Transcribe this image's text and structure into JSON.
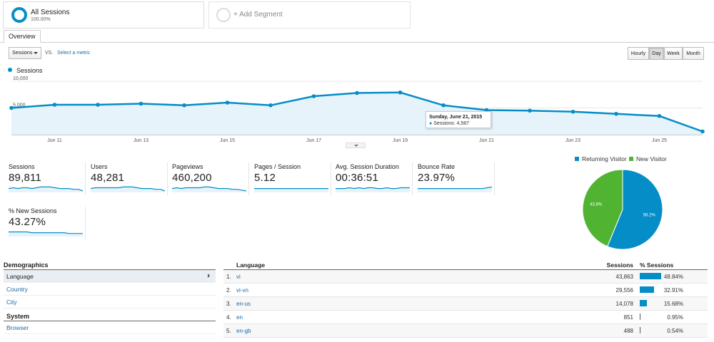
{
  "segments": [
    {
      "title": "All Sessions",
      "subtitle": "100.00%"
    },
    {
      "title": "+ Add Segment"
    }
  ],
  "tabs": [
    "Overview"
  ],
  "controls": {
    "metric": "Sessions",
    "vs": "VS.",
    "select_metric": "Select a metric",
    "granularity": [
      "Hourly",
      "Day",
      "Week",
      "Month"
    ],
    "active_granularity": "Day"
  },
  "chart_data": {
    "type": "area",
    "series": [
      {
        "name": "Sessions",
        "values": [
          5000,
          5600,
          5600,
          5800,
          5500,
          6000,
          5500,
          7200,
          7800,
          7900,
          5500,
          4600,
          4500,
          4300,
          3900,
          3500,
          600
        ]
      }
    ],
    "x_ticks": [
      "Jun 11",
      "Jun 13",
      "Jun 15",
      "Jun 17",
      "Jun 19",
      "Jun 21",
      "Jun 23",
      "Jun 25"
    ],
    "y_ticks": [
      "10,000",
      "5,000"
    ],
    "ylim": [
      0,
      10000
    ],
    "color": "#058dc7"
  },
  "tooltip": {
    "date": "Sunday, June 21, 2015",
    "text": "Sessions: 4,587"
  },
  "scorecards": [
    {
      "label": "Sessions",
      "value": "89,811",
      "spark": [
        6,
        5,
        6,
        5,
        5,
        6,
        5,
        4,
        4,
        4,
        5,
        6,
        6,
        6,
        7,
        7,
        9
      ]
    },
    {
      "label": "Users",
      "value": "48,281",
      "spark": [
        6,
        5,
        5,
        5,
        5,
        5,
        5,
        4,
        4,
        4,
        5,
        6,
        6,
        6,
        7,
        7,
        9
      ]
    },
    {
      "label": "Pageviews",
      "value": "460,200",
      "spark": [
        6,
        5,
        6,
        5,
        5,
        5,
        5,
        4,
        4,
        5,
        6,
        6,
        6,
        7,
        7,
        8,
        9
      ]
    },
    {
      "label": "Pages / Session",
      "value": "5.12",
      "spark": [
        6,
        6,
        6,
        6,
        6,
        6,
        6,
        6,
        6,
        6,
        6,
        6,
        6,
        6,
        6,
        6,
        6
      ]
    },
    {
      "label": "Avg. Session Duration",
      "value": "00:36:51",
      "spark": [
        6,
        6,
        6,
        5,
        6,
        5,
        6,
        5,
        5,
        6,
        6,
        5,
        6,
        6,
        5,
        5,
        5
      ]
    },
    {
      "label": "Bounce Rate",
      "value": "23.97%",
      "spark": [
        6,
        6,
        6,
        6,
        6,
        6,
        6,
        6,
        6,
        6,
        6,
        6,
        6,
        6,
        6,
        5,
        4
      ]
    },
    {
      "label": "% New Sessions",
      "value": "43.27%",
      "spark": [
        5,
        5,
        5,
        5,
        5,
        6,
        6,
        6,
        6,
        6,
        6,
        6,
        6,
        7,
        7,
        7,
        7
      ]
    }
  ],
  "pie_data": {
    "type": "pie",
    "slices": [
      {
        "name": "Returning Visitor",
        "value": 56.2,
        "label": "56.2%",
        "color": "#058dc7"
      },
      {
        "name": "New Visitor",
        "value": 43.8,
        "label": "43.8%",
        "color": "#50b432"
      }
    ]
  },
  "demographics": {
    "heading": "Demographics",
    "items": [
      "Language",
      "Country",
      "City"
    ],
    "active": "Language",
    "system_heading": "System",
    "system_items": [
      "Browser"
    ]
  },
  "table": {
    "headers": {
      "dimension": "Language",
      "sessions": "Sessions",
      "pct": "% Sessions"
    },
    "rows": [
      {
        "idx": "1.",
        "lang": "vi",
        "sessions": "43,863",
        "pct": "48.84%",
        "share": 48.84
      },
      {
        "idx": "2.",
        "lang": "vi-vn",
        "sessions": "29,556",
        "pct": "32.91%",
        "share": 32.91
      },
      {
        "idx": "3.",
        "lang": "en-us",
        "sessions": "14,078",
        "pct": "15.68%",
        "share": 15.68
      },
      {
        "idx": "4.",
        "lang": "en",
        "sessions": "851",
        "pct": "0.95%",
        "share": 0.95
      },
      {
        "idx": "5.",
        "lang": "en-gb",
        "sessions": "488",
        "pct": "0.54%",
        "share": 0.54
      }
    ]
  }
}
